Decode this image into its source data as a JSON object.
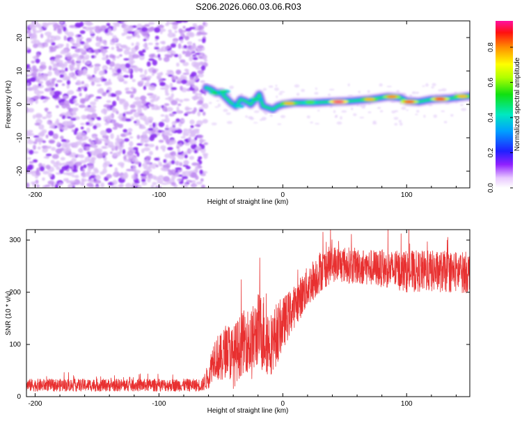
{
  "title": "S206.2026.060.03.06.R03",
  "chart_data": [
    {
      "type": "heatmap",
      "name": "spectrogram",
      "xlabel": "Height of straight line (km)",
      "ylabel": "Frequency (Hz)",
      "xlim": [
        -207,
        151
      ],
      "ylim": [
        -25,
        25
      ],
      "xticks": [
        -200,
        -100,
        0,
        100
      ],
      "yticks": [
        -20,
        -10,
        0,
        10,
        20
      ],
      "noise_region_x": [
        -207,
        -62
      ],
      "ridge": [
        {
          "x": -62,
          "y": 5.0
        },
        {
          "x": -58,
          "y": 4.5
        },
        {
          "x": -54,
          "y": 3.5
        },
        {
          "x": -50,
          "y": 3.5
        },
        {
          "x": -46,
          "y": 2.0
        },
        {
          "x": -42,
          "y": 0.5
        },
        {
          "x": -38,
          "y": -0.5
        },
        {
          "x": -34,
          "y": 1.5
        },
        {
          "x": -30,
          "y": 1.0
        },
        {
          "x": -26,
          "y": 0.0
        },
        {
          "x": -22,
          "y": 1.5
        },
        {
          "x": -19,
          "y": 3.0
        },
        {
          "x": -16,
          "y": -0.5
        },
        {
          "x": -12,
          "y": -1.0
        },
        {
          "x": -8,
          "y": -1.5
        },
        {
          "x": -4,
          "y": -0.5
        },
        {
          "x": 0,
          "y": 0.0
        },
        {
          "x": 10,
          "y": 0.5
        },
        {
          "x": 25,
          "y": 0.5
        },
        {
          "x": 40,
          "y": 0.8
        },
        {
          "x": 55,
          "y": 1.0
        },
        {
          "x": 70,
          "y": 1.5
        },
        {
          "x": 85,
          "y": 2.3
        },
        {
          "x": 95,
          "y": 2.0
        },
        {
          "x": 100,
          "y": 1.0
        },
        {
          "x": 110,
          "y": 0.8
        },
        {
          "x": 120,
          "y": 1.5
        },
        {
          "x": 135,
          "y": 1.8
        },
        {
          "x": 151,
          "y": 2.5
        }
      ],
      "hotspots": [
        {
          "x": -54,
          "y": 3.5,
          "level": 0.55
        },
        {
          "x": -48,
          "y": 3.8,
          "level": 0.5
        },
        {
          "x": -36,
          "y": -0.5,
          "level": 0.45
        },
        {
          "x": -22,
          "y": 1.5,
          "level": 0.5
        },
        {
          "x": 5,
          "y": 0.3,
          "level": 0.8
        },
        {
          "x": 22,
          "y": 0.6,
          "level": 0.6
        },
        {
          "x": 45,
          "y": 0.8,
          "level": 0.98
        },
        {
          "x": 70,
          "y": 1.5,
          "level": 0.8
        },
        {
          "x": 88,
          "y": 2.3,
          "level": 0.85
        },
        {
          "x": 102,
          "y": 0.8,
          "level": 0.9
        },
        {
          "x": 127,
          "y": 1.6,
          "level": 0.92
        },
        {
          "x": 145,
          "y": 2.4,
          "level": 0.8
        }
      ]
    },
    {
      "type": "colorbar",
      "name": "colorbar",
      "label": "Normalized spectral amplitude",
      "range": [
        0.0,
        0.95
      ],
      "ticks": [
        0.0,
        0.2,
        0.4,
        0.6,
        0.8
      ]
    },
    {
      "type": "line",
      "name": "snr",
      "xlabel": "Height of straight line (km)",
      "ylabel": "SNR (10 * v/v)",
      "xlim": [
        -207,
        151
      ],
      "ylim": [
        0,
        320
      ],
      "xticks": [
        -200,
        -100,
        0,
        100
      ],
      "yticks": [
        0,
        100,
        200,
        300
      ],
      "color": "#e83030",
      "envelope": [
        {
          "x": -207,
          "mean": 22,
          "spread": 12
        },
        {
          "x": -65,
          "mean": 22,
          "spread": 12
        },
        {
          "x": -60,
          "mean": 40,
          "spread": 25
        },
        {
          "x": -55,
          "mean": 80,
          "spread": 40
        },
        {
          "x": -50,
          "mean": 70,
          "spread": 50
        },
        {
          "x": -45,
          "mean": 95,
          "spread": 50
        },
        {
          "x": -40,
          "mean": 75,
          "spread": 60
        },
        {
          "x": -35,
          "mean": 95,
          "spread": 60
        },
        {
          "x": -30,
          "mean": 110,
          "spread": 60
        },
        {
          "x": -25,
          "mean": 100,
          "spread": 70
        },
        {
          "x": -20,
          "mean": 130,
          "spread": 70
        },
        {
          "x": -15,
          "mean": 120,
          "spread": 80
        },
        {
          "x": -10,
          "mean": 100,
          "spread": 60
        },
        {
          "x": -5,
          "mean": 120,
          "spread": 60
        },
        {
          "x": 0,
          "mean": 140,
          "spread": 50
        },
        {
          "x": 10,
          "mean": 175,
          "spread": 40
        },
        {
          "x": 20,
          "mean": 210,
          "spread": 40
        },
        {
          "x": 30,
          "mean": 240,
          "spread": 40
        },
        {
          "x": 40,
          "mean": 255,
          "spread": 35
        },
        {
          "x": 60,
          "mean": 250,
          "spread": 35
        },
        {
          "x": 80,
          "mean": 245,
          "spread": 35
        },
        {
          "x": 100,
          "mean": 240,
          "spread": 40
        },
        {
          "x": 120,
          "mean": 240,
          "spread": 40
        },
        {
          "x": 151,
          "mean": 238,
          "spread": 40
        }
      ]
    }
  ]
}
